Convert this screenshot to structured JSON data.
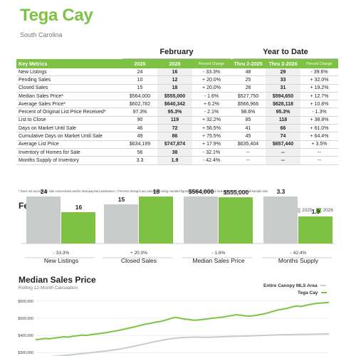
{
  "header": {
    "title": "Tega Cay",
    "subtitle": "South Carolina"
  },
  "table": {
    "group_headers": [
      "February",
      "Year to Date"
    ],
    "columns": [
      "Key Metrics",
      "2025",
      "2026",
      "Percent Change",
      "Thru 2-2025",
      "Thru 2-2026",
      "Percent Change"
    ],
    "rows": [
      [
        "New Listings",
        "24",
        "16",
        "- 33.3%",
        "48",
        "29",
        "- 39.6%"
      ],
      [
        "Pending Sales",
        "10",
        "12",
        "+ 20.0%",
        "25",
        "33",
        "+ 32.0%"
      ],
      [
        "Closed Sales",
        "15",
        "18",
        "+ 20.0%",
        "26",
        "31",
        "+ 19.2%"
      ],
      [
        "Median Sales Price*",
        "$564,000",
        "$555,000",
        "- 1.6%",
        "$527,750",
        "$594,650",
        "+ 12.7%"
      ],
      [
        "Average Sales Price*",
        "$602,782",
        "$640,342",
        "+ 6.2%",
        "$566,966",
        "$628,118",
        "+ 10.8%"
      ],
      [
        "Percent of Original List Price Received*",
        "97.3%",
        "95.3%",
        "- 2.1%",
        "98.6%",
        "95.3%",
        "- 1.3%"
      ],
      [
        "List to Close",
        "90",
        "119",
        "+ 32.2%",
        "85",
        "118",
        "+ 38.8%"
      ],
      [
        "Days on Market Until Sale",
        "46",
        "72",
        "+ 56.5%",
        "41",
        "66",
        "+ 61.0%"
      ],
      [
        "Cumulative Days on Market Until Sale",
        "49",
        "86",
        "+ 75.5%",
        "45",
        "74",
        "+ 64.4%"
      ],
      [
        "Average List Price",
        "$634,199",
        "$747,874",
        "+ 17.9%",
        "$635,404",
        "$657,440",
        "+ 3.5%"
      ],
      [
        "Inventory of Homes for Sale",
        "56",
        "38",
        "- 32.1%",
        "--",
        "--",
        "--"
      ],
      [
        "Months Supply of Inventory",
        "3.3",
        "1.9",
        "- 42.4%",
        "--",
        "--",
        "--"
      ]
    ],
    "footnote": "* Does not account for sale concessions and/or downpayment assistance.  |  Percent changes are calculated using rounded figures and can sometimes look extreme due to small sample size."
  },
  "bar_section": {
    "title": "February",
    "legend": [
      {
        "label": "2025",
        "color": "#c8cccb"
      },
      {
        "label": "2026",
        "color": "#7dc242"
      }
    ]
  },
  "line_section": {
    "title": "Median Sales Price",
    "subtitle": "Rolling 12-Month Calculation",
    "legend": [
      {
        "label": "Entire Canopy MLS Area",
        "color": "#c8cccb"
      },
      {
        "label": "Tega Cay",
        "color": "#7dc242"
      }
    ]
  },
  "chart_data": [
    {
      "type": "bar",
      "title": "February",
      "groups": [
        {
          "label": "New Listings",
          "change": "- 33.3%",
          "values": [
            24,
            16
          ],
          "value_labels": [
            "24",
            "16"
          ]
        },
        {
          "label": "Closed Sales",
          "change": "+ 20.0%",
          "values": [
            15,
            18
          ],
          "value_labels": [
            "15",
            "18"
          ]
        },
        {
          "label": "Median Sales Price",
          "change": "- 1.6%",
          "values": [
            564000,
            555000
          ],
          "value_labels": [
            "$564,000",
            "$555,000"
          ]
        },
        {
          "label": "Months Supply",
          "change": "- 42.4%",
          "values": [
            3.3,
            1.9
          ],
          "value_labels": [
            "3.3",
            "1.9"
          ]
        }
      ],
      "series": [
        {
          "name": "2025",
          "color": "#c8cccb"
        },
        {
          "name": "2026",
          "color": "#7dc242"
        }
      ]
    },
    {
      "type": "line",
      "title": "Median Sales Price",
      "subtitle": "Rolling 12-Month Calculation",
      "yticks": [
        "$600,000",
        "$500,000",
        "$400,000",
        "$300,000"
      ],
      "ylim": [
        280000,
        620000
      ],
      "series": [
        {
          "name": "Tega Cay",
          "color": "#7dc242",
          "values": [
            375000,
            378000,
            382000,
            380000,
            385000,
            388000,
            392000,
            390000,
            395000,
            398000,
            402000,
            400000,
            405000,
            408000,
            412000,
            415000,
            420000,
            425000,
            430000,
            436000,
            442000,
            448000,
            455000,
            462000,
            468000,
            472000,
            478000,
            482000,
            490000,
            498000,
            505000,
            500000,
            495000,
            492000,
            488000,
            490000,
            493000,
            496000,
            500000,
            503000,
            506000,
            510000,
            515000,
            520000,
            518000,
            514000,
            512000,
            515000,
            520000,
            525000,
            532000,
            540000,
            548000,
            552000,
            558000,
            565000,
            572000,
            568000,
            575000,
            580000,
            585000,
            588000,
            590000,
            592000
          ]
        },
        {
          "name": "Entire Canopy MLS Area",
          "color": "#c8cccb",
          "values": [
            270000,
            272000,
            274000,
            276000,
            278000,
            280000,
            282000,
            285000,
            288000,
            291000,
            294000,
            297000,
            300000,
            303000,
            306000,
            309000,
            312000,
            316000,
            320000,
            325000,
            330000,
            336000,
            342000,
            348000,
            354000,
            360000,
            366000,
            371000,
            376000,
            380000,
            384000,
            386000,
            388000,
            389000,
            390000,
            390000,
            389000,
            389000,
            390000,
            391000,
            392000,
            393000,
            394000,
            395000,
            396000,
            396000,
            397000,
            398000,
            399000,
            400000,
            401000,
            402000,
            403000,
            404000,
            404000,
            405000,
            405000,
            406000,
            406000,
            407000,
            407000,
            408000,
            408000,
            409000
          ]
        }
      ]
    }
  ]
}
